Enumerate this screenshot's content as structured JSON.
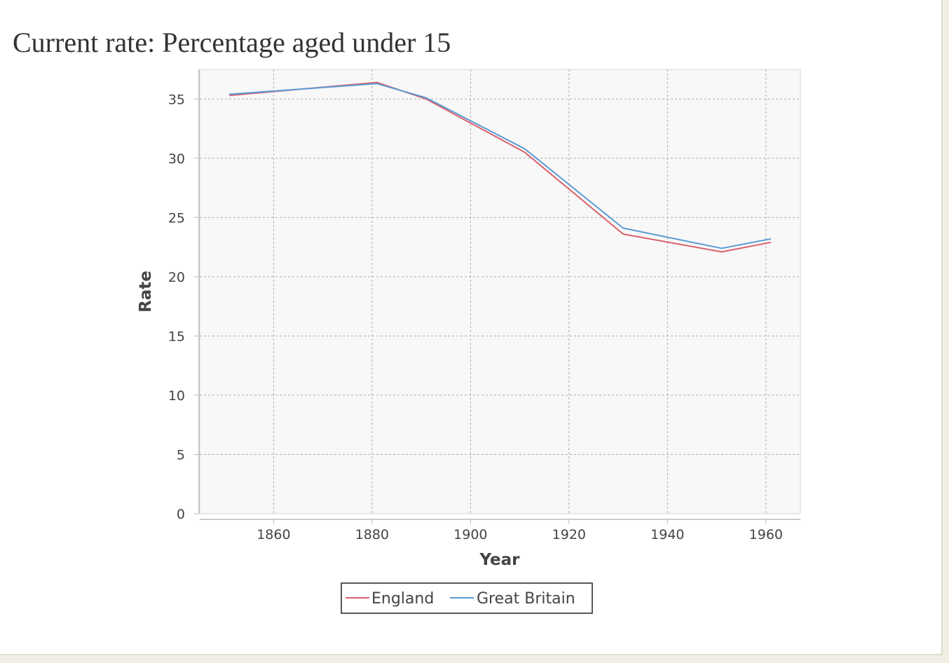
{
  "page": {
    "title": "Current rate: Percentage aged under 15"
  },
  "colors": {
    "england": "#d9616b",
    "great_britain": "#5b9bd5",
    "plot_background": "#f8f8f8",
    "grid": "#aaaaaa"
  },
  "chart_data": {
    "type": "line",
    "title": "",
    "xlabel": "Year",
    "ylabel": "Rate",
    "xlim": [
      1845,
      1967
    ],
    "ylim": [
      0,
      37.5
    ],
    "x_ticks": [
      1860,
      1880,
      1900,
      1920,
      1940,
      1960
    ],
    "y_ticks": [
      0,
      5,
      10,
      15,
      20,
      25,
      30,
      35
    ],
    "grid": true,
    "legend_position": "bottom",
    "x": [
      1851,
      1881,
      1891,
      1911,
      1931,
      1951,
      1961
    ],
    "series": [
      {
        "name": "England",
        "color": "#d9616b",
        "values": [
          35.3,
          36.4,
          35.0,
          30.5,
          23.6,
          22.1,
          22.9
        ]
      },
      {
        "name": "Great Britain",
        "color": "#5b9bd5",
        "values": [
          35.4,
          36.3,
          35.1,
          30.8,
          24.1,
          22.4,
          23.2
        ]
      }
    ]
  }
}
